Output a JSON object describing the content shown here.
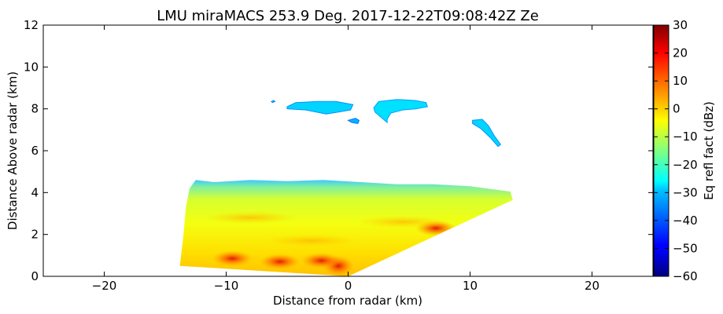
{
  "chart_data": {
    "type": "heatmap",
    "title": "LMU miraMACS 253.9 Deg. 2017-12-22T09:08:42Z  Ze",
    "xlabel": "Distance from radar (km)",
    "ylabel": "Distance Above radar  (km)",
    "xlim": [
      -25,
      25
    ],
    "ylim": [
      0,
      12
    ],
    "x_ticks": [
      -20,
      -10,
      0,
      10,
      20
    ],
    "x_tick_labels": [
      "−20",
      "−10",
      "0",
      "10",
      "20"
    ],
    "y_ticks": [
      0,
      2,
      4,
      6,
      8,
      10,
      12
    ],
    "y_tick_labels": [
      "0",
      "2",
      "4",
      "6",
      "8",
      "10",
      "12"
    ],
    "grid": false,
    "colorbar": {
      "label": "Eq refl fact (dBz)",
      "range": [
        -60,
        30
      ],
      "ticks": [
        30,
        20,
        10,
        0,
        -10,
        -20,
        -30,
        -40,
        -50,
        -60
      ],
      "tick_labels": [
        "30",
        "20",
        "10",
        "0",
        "−10",
        "−20",
        "−30",
        "−40",
        "−50",
        "−60"
      ],
      "colormap": "jet"
    },
    "regions": [
      {
        "name": "lower-echo-layer",
        "dbz": -8,
        "polygon": [
          [
            -13.8,
            0.5
          ],
          [
            -13.5,
            2.0
          ],
          [
            -13.3,
            3.3
          ],
          [
            -13.0,
            4.2
          ],
          [
            -12.5,
            4.6
          ],
          [
            -11,
            4.5
          ],
          [
            -8,
            4.6
          ],
          [
            -5,
            4.55
          ],
          [
            -2,
            4.6
          ],
          [
            1,
            4.5
          ],
          [
            4,
            4.4
          ],
          [
            7,
            4.4
          ],
          [
            10,
            4.3
          ],
          [
            13.3,
            4.05
          ],
          [
            13.5,
            3.65
          ],
          [
            0,
            0
          ]
        ]
      },
      {
        "name": "upper-cloud-1",
        "dbz": -30,
        "polygon": [
          [
            -5,
            8.1
          ],
          [
            -4.3,
            8.3
          ],
          [
            -2.5,
            8.35
          ],
          [
            -1,
            8.35
          ],
          [
            0.4,
            8.2
          ],
          [
            0.2,
            7.95
          ],
          [
            -0.8,
            7.85
          ],
          [
            -1.8,
            7.75
          ],
          [
            -3.5,
            7.95
          ],
          [
            -5,
            8.0
          ]
        ]
      },
      {
        "name": "upper-cloud-2",
        "dbz": -31,
        "polygon": [
          [
            -6.3,
            8.35
          ],
          [
            -6.1,
            8.4
          ],
          [
            -6.0,
            8.35
          ],
          [
            -6.2,
            8.3
          ]
        ]
      },
      {
        "name": "upper-cloud-3",
        "dbz": -33,
        "polygon": [
          [
            0,
            7.45
          ],
          [
            0.6,
            7.55
          ],
          [
            0.9,
            7.45
          ],
          [
            0.8,
            7.3
          ],
          [
            0.3,
            7.35
          ]
        ]
      },
      {
        "name": "upper-cloud-4",
        "dbz": -29,
        "polygon": [
          [
            2.1,
            8.05
          ],
          [
            2.5,
            8.35
          ],
          [
            4,
            8.45
          ],
          [
            5.5,
            8.4
          ],
          [
            6.4,
            8.3
          ],
          [
            6.5,
            8.1
          ],
          [
            5.5,
            8.0
          ],
          [
            4.5,
            7.95
          ],
          [
            3.5,
            7.8
          ],
          [
            3.2,
            7.5
          ],
          [
            3.2,
            7.35
          ],
          [
            2.6,
            7.65
          ],
          [
            2.2,
            7.85
          ]
        ]
      },
      {
        "name": "upper-cloud-5",
        "dbz": -30,
        "polygon": [
          [
            10.2,
            7.45
          ],
          [
            11.0,
            7.5
          ],
          [
            11.5,
            7.2
          ],
          [
            12.0,
            6.7
          ],
          [
            12.5,
            6.3
          ],
          [
            12.3,
            6.2
          ],
          [
            11.7,
            6.6
          ],
          [
            10.9,
            7.05
          ],
          [
            10.2,
            7.3
          ]
        ]
      }
    ],
    "features": [
      {
        "name": "strong-echo-core",
        "x": -0.8,
        "y": 0.5,
        "dbz": 20
      },
      {
        "name": "strong-echo-core",
        "x": -5.6,
        "y": 0.7,
        "dbz": 13
      },
      {
        "name": "strong-echo-core",
        "x": -2.2,
        "y": 0.75,
        "dbz": 12
      },
      {
        "name": "strong-echo-core",
        "x": 7.2,
        "y": 2.3,
        "dbz": 8
      },
      {
        "name": "strong-echo-core",
        "x": -9.5,
        "y": 0.85,
        "dbz": 6
      },
      {
        "name": "bright-band",
        "x": -3,
        "y": 1.7,
        "dbz": 2
      },
      {
        "name": "bright-band",
        "x": 4.5,
        "y": 2.6,
        "dbz": 2
      },
      {
        "name": "bright-band",
        "x": -8,
        "y": 2.8,
        "dbz": 0
      }
    ]
  }
}
